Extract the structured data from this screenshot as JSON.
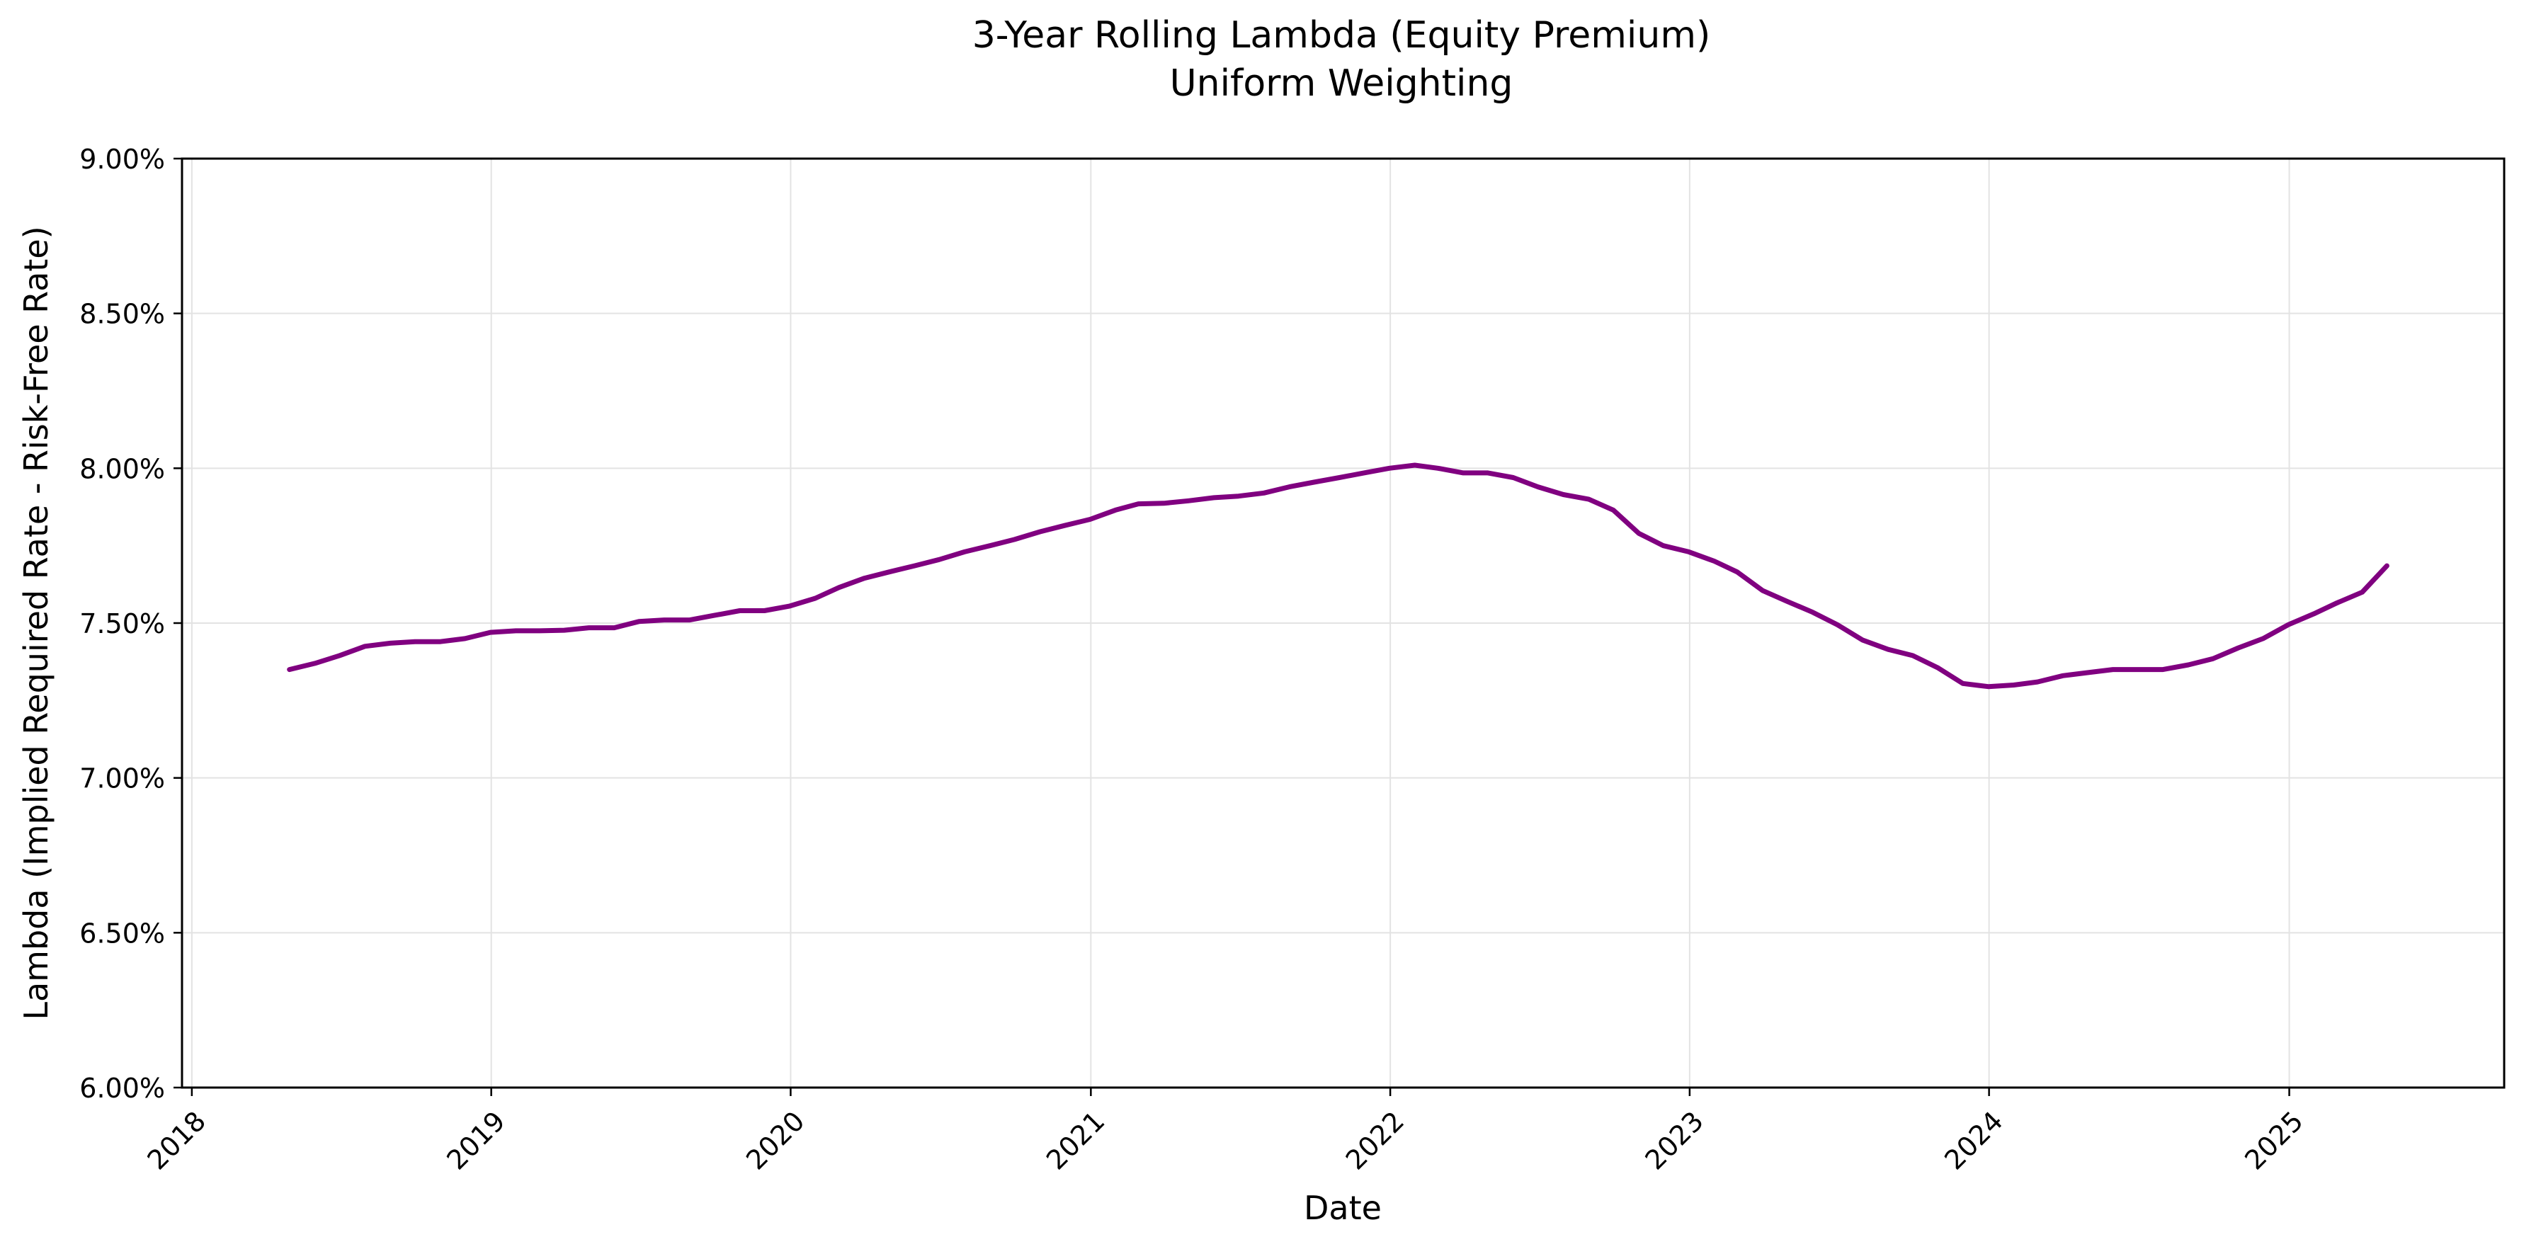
{
  "chart_data": {
    "type": "line",
    "title_line1": "3-Year Rolling Lambda (Equity Premium)",
    "title_line2": "Uniform Weighting",
    "xlabel": "Date",
    "ylabel": "Lambda (Implied Required Rate - Risk-Free Rate)",
    "ylim": [
      6.0,
      9.0
    ],
    "xlim": [
      "2017-12-20",
      "2025-09-20"
    ],
    "yticks": [
      "6.00%",
      "6.50%",
      "7.00%",
      "7.50%",
      "8.00%",
      "8.50%",
      "9.00%"
    ],
    "xticks": [
      "2018",
      "2019",
      "2020",
      "2021",
      "2022",
      "2023",
      "2024",
      "2025"
    ],
    "grid": true,
    "line_color": "#800080",
    "series": [
      {
        "x": [
          "2018-04-30",
          "2018-05-31",
          "2018-06-30",
          "2018-07-31",
          "2018-08-31",
          "2018-09-30",
          "2018-10-31",
          "2018-11-30",
          "2018-12-31",
          "2019-01-31",
          "2019-02-28",
          "2019-03-31",
          "2019-04-30",
          "2019-05-31",
          "2019-06-30",
          "2019-07-31",
          "2019-08-31",
          "2019-09-30",
          "2019-10-31",
          "2019-11-30",
          "2019-12-31",
          "2020-01-31",
          "2020-02-29",
          "2020-03-31",
          "2020-04-30",
          "2020-05-31",
          "2020-06-30",
          "2020-07-31",
          "2020-08-31",
          "2020-09-30",
          "2020-10-31",
          "2020-11-30",
          "2020-12-31",
          "2021-01-31",
          "2021-02-28",
          "2021-03-31",
          "2021-04-30",
          "2021-05-31",
          "2021-06-30",
          "2021-07-31",
          "2021-08-31",
          "2021-09-30",
          "2021-10-31",
          "2021-11-30",
          "2021-12-31",
          "2022-01-31",
          "2022-02-28",
          "2022-03-31",
          "2022-04-30",
          "2022-05-31",
          "2022-06-30",
          "2022-07-31",
          "2022-08-31",
          "2022-09-30",
          "2022-10-31",
          "2022-11-30",
          "2022-12-31",
          "2023-01-31",
          "2023-02-28",
          "2023-03-31",
          "2023-04-30",
          "2023-05-31",
          "2023-06-30",
          "2023-07-31",
          "2023-08-31",
          "2023-09-30",
          "2023-10-31",
          "2023-11-30",
          "2023-12-31",
          "2024-01-31",
          "2024-02-29",
          "2024-03-31",
          "2024-04-30",
          "2024-05-31",
          "2024-06-30",
          "2024-07-31",
          "2024-08-31",
          "2024-09-30",
          "2024-10-31",
          "2024-11-30",
          "2024-12-31",
          "2025-01-31",
          "2025-02-28",
          "2025-03-31",
          "2025-04-30"
        ],
        "y": [
          7.35,
          7.37,
          7.395,
          7.425,
          7.435,
          7.44,
          7.44,
          7.45,
          7.47,
          7.475,
          7.475,
          7.477,
          7.485,
          7.485,
          7.505,
          7.51,
          7.51,
          7.525,
          7.54,
          7.54,
          7.555,
          7.58,
          7.615,
          7.645,
          7.665,
          7.685,
          7.705,
          7.73,
          7.75,
          7.77,
          7.795,
          7.815,
          7.835,
          7.865,
          7.885,
          7.887,
          7.895,
          7.905,
          7.91,
          7.92,
          7.94,
          7.955,
          7.97,
          7.985,
          8.0,
          8.01,
          8.0,
          7.985,
          7.985,
          7.97,
          7.94,
          7.915,
          7.9,
          7.865,
          7.79,
          7.75,
          7.73,
          7.7,
          7.665,
          7.605,
          7.57,
          7.535,
          7.495,
          7.445,
          7.415,
          7.395,
          7.355,
          7.305,
          7.295,
          7.3,
          7.31,
          7.33,
          7.34,
          7.35,
          7.35,
          7.35,
          7.365,
          7.385,
          7.42,
          7.45,
          7.495,
          7.53,
          7.565,
          7.6,
          7.685
        ]
      }
    ]
  }
}
